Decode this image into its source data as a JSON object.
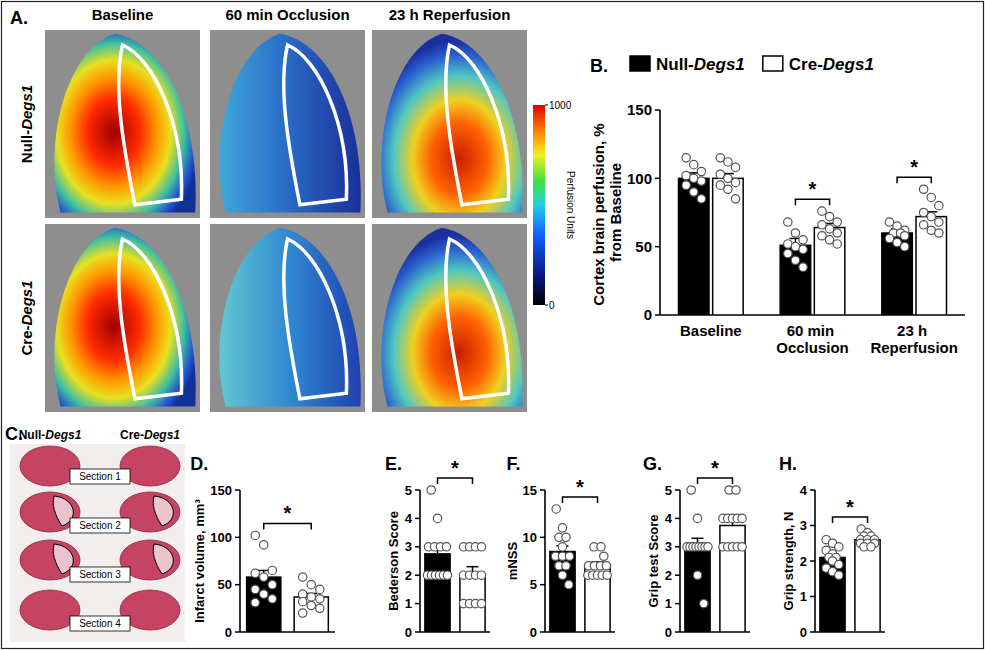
{
  "chart_data": [
    {
      "type": "bar",
      "y_label": "Cortex brain perfusion, % from Baseline",
      "categories": [
        "Baseline",
        "60 min Occlusion",
        "23 h Reperfusion"
      ],
      "series": [
        {
          "name": "Null-Degs1",
          "color": "#000000",
          "values": [
            100,
            51,
            60
          ],
          "errors": [
            4,
            5,
            3
          ],
          "points": [
            [
              115,
              110,
              105,
              102,
              100,
              98,
              95,
              90,
              85
            ],
            [
              68,
              60,
              55,
              52,
              50,
              48,
              45,
              40,
              35
            ],
            [
              68,
              65,
              62,
              60,
              60,
              58,
              56,
              53,
              50
            ]
          ]
        },
        {
          "name": "Cre-Degs1",
          "color": "#ffffff",
          "values": [
            100,
            64,
            72
          ],
          "errors": [
            3.5,
            3,
            3.5
          ],
          "points": [
            [
              115,
              112,
              108,
              103,
              100,
              97,
              95,
              92,
              85
            ],
            [
              76,
              72,
              68,
              66,
              63,
              60,
              58,
              55,
              52
            ],
            [
              92,
              86,
              80,
              75,
              72,
              68,
              66,
              62,
              60
            ]
          ]
        }
      ],
      "ylim": [
        0,
        150
      ],
      "yticks": [
        0,
        50,
        100,
        150
      ],
      "legend": "top",
      "annotations": [
        {
          "text": "*",
          "category": 1
        },
        {
          "text": "*",
          "category": 2
        }
      ]
    },
    {
      "type": "bar",
      "y_label": "Infarct volume, mm³",
      "categories": [
        null,
        null
      ],
      "colors": [
        "#000000",
        "#ffffff"
      ],
      "values": [
        58,
        37
      ],
      "errors": [
        7,
        3.7
      ],
      "points": [
        [
          102,
          92,
          65,
          62,
          58,
          50,
          45,
          40,
          35,
          31
        ],
        [
          58,
          50,
          45,
          40,
          37,
          35,
          32,
          28,
          25,
          20
        ]
      ],
      "ylim": [
        0,
        150
      ],
      "yticks": [
        0,
        50,
        100,
        150
      ],
      "annotations": [
        {
          "text": "*",
          "categories": [
            0,
            1
          ]
        }
      ]
    },
    {
      "type": "bar",
      "y_label": "Bederson Score",
      "categories": [
        null,
        null
      ],
      "colors": [
        "#000000",
        "#ffffff"
      ],
      "values": [
        2.75,
        2.0
      ],
      "errors": [
        0.25,
        0.3
      ],
      "points": [
        [
          5,
          4,
          3,
          3,
          3,
          3,
          2,
          2,
          2,
          2,
          2,
          2
        ],
        [
          3,
          3,
          3,
          3,
          2,
          2,
          2,
          2,
          1,
          1,
          1,
          1
        ]
      ],
      "ylim": [
        0,
        5
      ],
      "yticks": [
        0,
        1,
        2,
        3,
        4,
        5
      ],
      "annotations": [
        {
          "text": "*",
          "categories": [
            0,
            1
          ]
        }
      ]
    },
    {
      "type": "bar",
      "y_label": "mNSS",
      "categories": [
        null,
        null
      ],
      "colors": [
        "#000000",
        "#ffffff"
      ],
      "values": [
        8.5,
        7.0
      ],
      "errors": [
        0.6,
        0.4
      ],
      "points": [
        [
          13,
          11,
          10,
          10,
          9,
          8,
          8,
          8,
          7,
          7,
          6,
          5
        ],
        [
          9,
          9,
          8,
          7,
          7,
          7,
          7,
          6,
          6,
          6,
          6,
          6
        ]
      ],
      "ylim": [
        0,
        15
      ],
      "yticks": [
        0,
        5,
        10,
        15
      ],
      "annotations": [
        {
          "text": "*",
          "categories": [
            0,
            1
          ]
        }
      ]
    },
    {
      "type": "bar",
      "y_label": "Grip test Score",
      "categories": [
        null,
        null
      ],
      "colors": [
        "#000000",
        "#ffffff"
      ],
      "values": [
        3.0,
        3.75
      ],
      "errors": [
        0.3,
        0.2
      ],
      "points": [
        [
          5,
          4,
          3,
          3,
          3,
          3,
          3,
          3,
          3,
          3,
          2,
          1
        ],
        [
          5,
          5,
          4,
          4,
          4,
          4,
          4,
          3,
          3,
          3,
          3,
          3
        ]
      ],
      "ylim": [
        0,
        5
      ],
      "yticks": [
        0,
        1,
        2,
        3,
        4,
        5
      ],
      "annotations": [
        {
          "text": "*",
          "categories": [
            0,
            1
          ]
        }
      ]
    },
    {
      "type": "bar",
      "y_label": "Grip strength, N",
      "categories": [
        null,
        null
      ],
      "colors": [
        "#000000",
        "#ffffff"
      ],
      "values": [
        2.1,
        2.6
      ],
      "errors": [
        0.1,
        0.05
      ],
      "points": [
        [
          2.6,
          2.5,
          2.4,
          2.3,
          2.2,
          2.1,
          2.1,
          2.0,
          1.9,
          1.8,
          1.7,
          1.6
        ],
        [
          2.9,
          2.8,
          2.7,
          2.7,
          2.6,
          2.6,
          2.6,
          2.5,
          2.5,
          2.5,
          2.4,
          2.4
        ]
      ],
      "ylim": [
        0,
        4
      ],
      "yticks": [
        0,
        1,
        2,
        3,
        4
      ],
      "annotations": [
        {
          "text": "*",
          "categories": [
            0,
            1
          ]
        }
      ]
    }
  ],
  "figure": {
    "panel_letters": [
      "A.",
      "B.",
      "C.",
      "D.",
      "E.",
      "F.",
      "G.",
      "H."
    ],
    "perfusion_images": {
      "columns": [
        "Baseline",
        "60 min Occlusion",
        "23 h Reperfusion"
      ],
      "rows": [
        "Null-Degs1",
        "Cre-Degs1"
      ],
      "colorbar": {
        "title": "Perfusion Units",
        "range": [
          0,
          1000
        ],
        "ticks": [
          0,
          1000
        ]
      }
    },
    "ttc_sections": {
      "columns": [
        "Null-Degs1",
        "Cre-Degs1"
      ],
      "sections": [
        "Section 1",
        "Section 2",
        "Section 3",
        "Section 4"
      ]
    }
  }
}
